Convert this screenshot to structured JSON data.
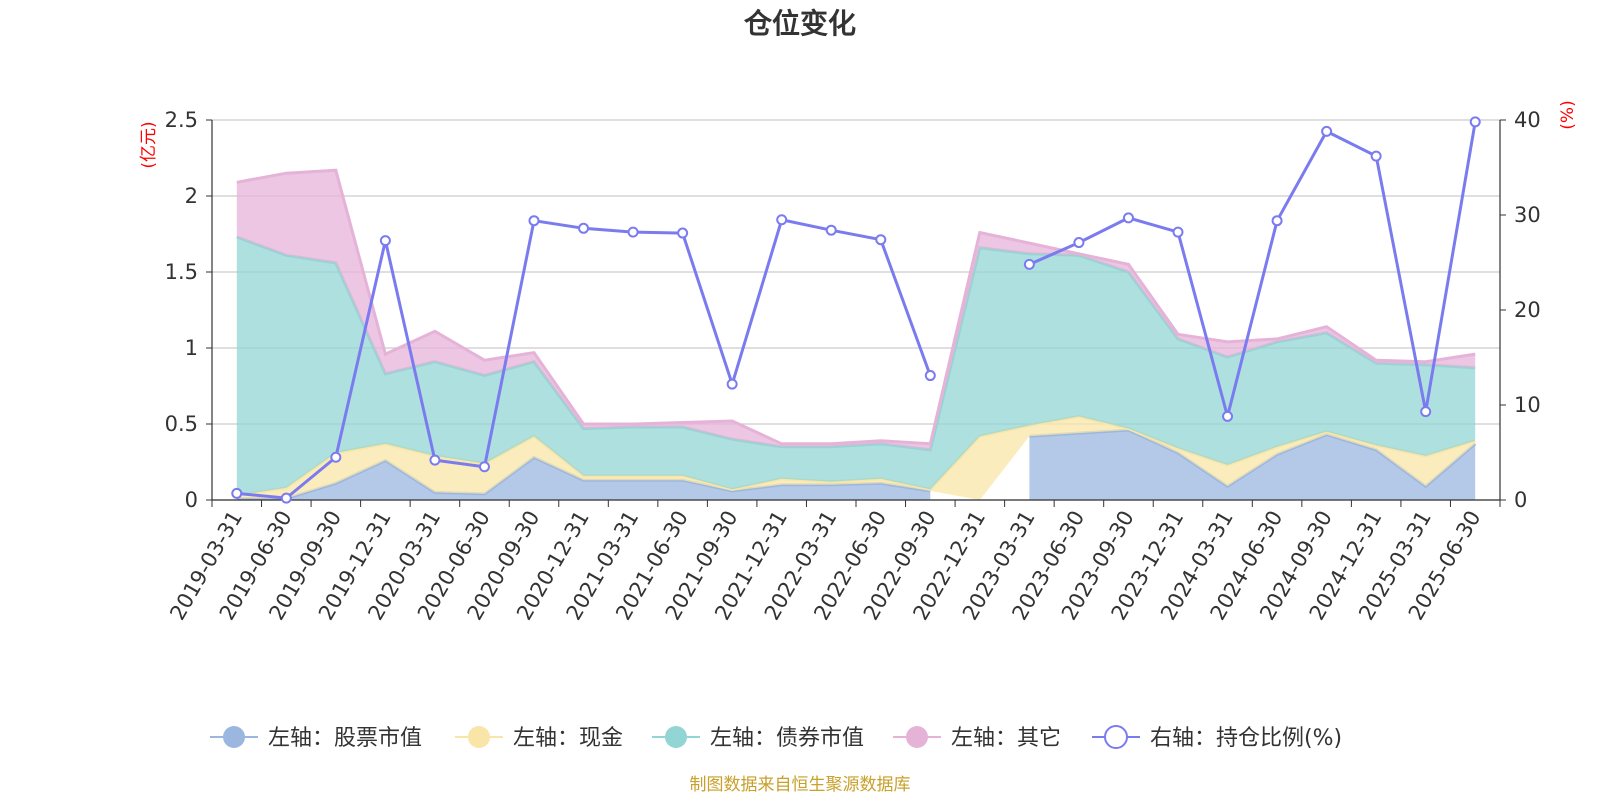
{
  "chart_data": {
    "type": "area",
    "title": "仓位变化",
    "source_note": "制图数据来自恒生聚源数据库",
    "left_axis": {
      "unit": "(亿元)",
      "min": 0,
      "max": 2.5,
      "ticks": [
        "0",
        "0.5",
        "1",
        "1.5",
        "2",
        "2.5"
      ]
    },
    "right_axis": {
      "unit": "(%)",
      "min": 0,
      "max": 40,
      "ticks": [
        "0",
        "10",
        "20",
        "30",
        "40"
      ]
    },
    "categories": [
      "2019-03-31",
      "2019-06-30",
      "2019-09-30",
      "2019-12-31",
      "2020-03-31",
      "2020-06-30",
      "2020-09-30",
      "2020-12-31",
      "2021-03-31",
      "2021-06-30",
      "2021-09-30",
      "2021-12-31",
      "2022-03-31",
      "2022-06-30",
      "2022-09-30",
      "2022-12-31",
      "2023-03-31",
      "2023-06-30",
      "2023-09-30",
      "2023-12-31",
      "2024-03-31",
      "2024-06-30",
      "2024-09-30",
      "2024-12-31",
      "2025-03-31",
      "2025-06-30"
    ],
    "series": [
      {
        "name": "左轴：股票市值",
        "axis": "left",
        "stack": true,
        "color": "#9bb7e0",
        "values": [
          0.01,
          0.01,
          0.11,
          0.26,
          0.05,
          0.04,
          0.28,
          0.13,
          0.13,
          0.13,
          0.06,
          0.1,
          0.1,
          0.11,
          0.06,
          null,
          0.42,
          0.44,
          0.46,
          0.31,
          0.09,
          0.3,
          0.43,
          0.33,
          0.09,
          0.37
        ]
      },
      {
        "name": "左轴：现金",
        "axis": "left",
        "stack": true,
        "color": "#f8e5a7",
        "values": [
          0.02,
          0.07,
          0.2,
          0.11,
          0.24,
          0.2,
          0.14,
          0.03,
          0.03,
          0.03,
          0.01,
          0.04,
          0.02,
          0.03,
          0.01,
          0.42,
          0.07,
          0.11,
          0.01,
          0.03,
          0.14,
          0.05,
          0.02,
          0.03,
          0.2,
          0.02
        ]
      },
      {
        "name": "左轴：债券市值",
        "axis": "left",
        "stack": true,
        "color": "#93d5d4",
        "values": [
          1.7,
          1.53,
          1.25,
          0.46,
          0.62,
          0.58,
          0.49,
          0.31,
          0.32,
          0.32,
          0.33,
          0.21,
          0.23,
          0.23,
          0.26,
          1.24,
          1.13,
          1.06,
          1.03,
          0.72,
          0.71,
          0.69,
          0.65,
          0.54,
          0.6,
          0.48
        ]
      },
      {
        "name": "左轴：其它",
        "axis": "left",
        "stack": true,
        "color": "#e6b3d8",
        "values": [
          0.36,
          0.54,
          0.61,
          0.13,
          0.2,
          0.1,
          0.06,
          0.03,
          0.02,
          0.03,
          0.12,
          0.02,
          0.02,
          0.02,
          0.04,
          0.1,
          0.07,
          0.01,
          0.05,
          0.03,
          0.1,
          0.02,
          0.04,
          0.02,
          0.02,
          0.09
        ]
      },
      {
        "name": "右轴：持仓比例(%)",
        "axis": "right",
        "type": "line",
        "color": "#7b7bf0",
        "values": [
          0.7,
          0.2,
          4.5,
          27.3,
          4.2,
          3.5,
          29.4,
          28.6,
          28.2,
          28.1,
          12.2,
          29.5,
          28.4,
          27.4,
          13.1,
          null,
          24.8,
          27.1,
          29.7,
          28.2,
          8.8,
          29.4,
          38.8,
          36.2,
          9.3,
          39.8
        ]
      }
    ],
    "legend": {
      "position": "bottom",
      "items": [
        "左轴：股票市值",
        "左轴：现金",
        "左轴：债券市值",
        "左轴：其它",
        "右轴：持仓比例(%)"
      ]
    }
  }
}
